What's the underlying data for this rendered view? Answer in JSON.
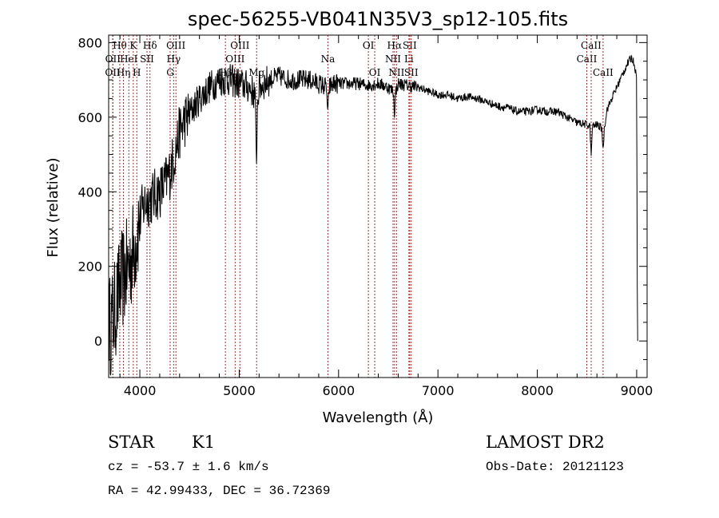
{
  "chart_data": {
    "type": "line",
    "title": "spec-56255-VB041N35V3_sp12-105.fits",
    "xlabel": "Wavelength (Å)",
    "ylabel": "Flux (relative)",
    "xlim": [
      3686,
      9105
    ],
    "ylim": [
      -98,
      820
    ],
    "xticks": [
      4000,
      5000,
      6000,
      7000,
      8000,
      9000
    ],
    "yticks": [
      0,
      200,
      400,
      600,
      800
    ],
    "grid": false,
    "spectrum": {
      "x": [
        3690,
        3700,
        3750,
        3800,
        3850,
        3900,
        3950,
        4000,
        4050,
        4100,
        4150,
        4200,
        4250,
        4300,
        4350,
        4400,
        4450,
        4500,
        4600,
        4700,
        4800,
        4900,
        5000,
        5100,
        5160,
        5172,
        5185,
        5200,
        5300,
        5400,
        5500,
        5600,
        5700,
        5800,
        5880,
        5892,
        5904,
        5950,
        6000,
        6100,
        6200,
        6300,
        6400,
        6500,
        6550,
        6563,
        6576,
        6600,
        6700,
        6800,
        6900,
        7000,
        7100,
        7200,
        7300,
        7400,
        7500,
        7600,
        7700,
        7800,
        7900,
        8000,
        8100,
        8200,
        8300,
        8400,
        8500,
        8530,
        8542,
        8554,
        8600,
        8650,
        8662,
        8674,
        8700,
        8800,
        8900,
        8950,
        8980,
        9000,
        9005,
        9010
      ],
      "y": [
        60,
        40,
        80,
        150,
        180,
        210,
        260,
        330,
        370,
        380,
        390,
        400,
        420,
        450,
        500,
        560,
        590,
        610,
        650,
        680,
        700,
        700,
        690,
        680,
        660,
        470,
        650,
        680,
        700,
        710,
        700,
        700,
        700,
        690,
        680,
        590,
        680,
        690,
        690,
        690,
        690,
        685,
        690,
        680,
        670,
        610,
        670,
        690,
        685,
        680,
        670,
        660,
        660,
        650,
        655,
        650,
        640,
        630,
        625,
        615,
        615,
        620,
        615,
        615,
        600,
        585,
        580,
        575,
        490,
        575,
        580,
        570,
        510,
        570,
        620,
        680,
        740,
        760,
        740,
        700,
        180,
        0
      ]
    },
    "lines": [
      {
        "label": "OII",
        "wl": 3727,
        "row": 2
      },
      {
        "label": "OII",
        "wl": 3729,
        "row": 1
      },
      {
        "label": "Hθ",
        "wl": 3798,
        "row": 0
      },
      {
        "label": "Hη",
        "wl": 3835,
        "row": 2
      },
      {
        "label": "HeI",
        "wl": 3889,
        "row": 1
      },
      {
        "label": "K",
        "wl": 3934,
        "row": 0
      },
      {
        "label": "H",
        "wl": 3969,
        "row": 2
      },
      {
        "label": "SII",
        "wl": 4072,
        "row": 1
      },
      {
        "label": "Hδ",
        "wl": 4102,
        "row": 0
      },
      {
        "label": "G",
        "wl": 4305,
        "row": 2
      },
      {
        "label": "Hγ",
        "wl": 4340,
        "row": 1
      },
      {
        "label": "OIII",
        "wl": 4363,
        "row": 0
      },
      {
        "label": "Hβ",
        "wl": 4861,
        "row": 2
      },
      {
        "label": "OIII",
        "wl": 4959,
        "row": 1
      },
      {
        "label": "OIII",
        "wl": 5007,
        "row": 0
      },
      {
        "label": "Mg",
        "wl": 5175,
        "row": 2
      },
      {
        "label": "Na",
        "wl": 5893,
        "row": 1
      },
      {
        "label": "OI",
        "wl": 6300,
        "row": 0
      },
      {
        "label": "OI",
        "wl": 6364,
        "row": 2
      },
      {
        "label": "NII",
        "wl": 6548,
        "row": 1
      },
      {
        "label": "Hα",
        "wl": 6563,
        "row": 0
      },
      {
        "label": "NII",
        "wl": 6583,
        "row": 2
      },
      {
        "label": "Li",
        "wl": 6708,
        "row": 1
      },
      {
        "label": "SII",
        "wl": 6716,
        "row": 0
      },
      {
        "label": "SII",
        "wl": 6731,
        "row": 2
      },
      {
        "label": "CaII",
        "wl": 8498,
        "row": 1
      },
      {
        "label": "CaII",
        "wl": 8542,
        "row": 0
      },
      {
        "label": "CaII",
        "wl": 8662,
        "row": 2
      }
    ],
    "colors": {
      "line_markers": "#a33030",
      "spectrum": "#000000"
    }
  },
  "info": {
    "class": "STAR",
    "subclass": "K1",
    "survey": "LAMOST DR2",
    "cz": "cz = -53.7 ± 1.6 km/s",
    "obsdate": "Obs-Date: 20121123",
    "radec": "RA =  42.99433, DEC =  36.72369"
  }
}
